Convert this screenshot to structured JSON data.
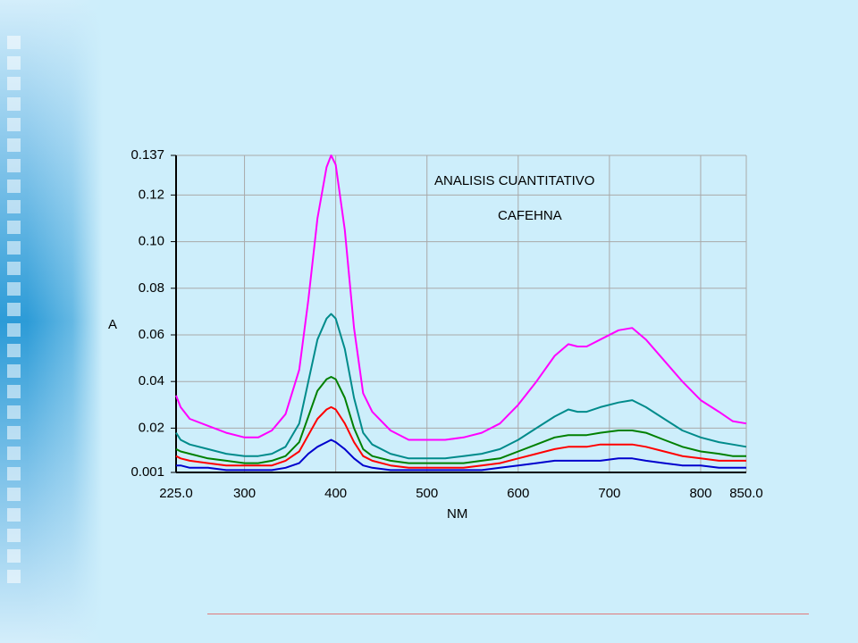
{
  "colors": {
    "background": "#cdeefb",
    "footer_line": "#e07a7a"
  },
  "chart_data": {
    "type": "line",
    "title": "ANALISIS CUANTITATIVO",
    "subtitle": "CAFEHNA",
    "xlabel": "NM",
    "ylabel": "A",
    "xlim": [
      225,
      850
    ],
    "ylim": [
      0.001,
      0.137
    ],
    "x_ticks": [
      {
        "value": 225,
        "label": "225.0"
      },
      {
        "value": 300,
        "label": "300"
      },
      {
        "value": 400,
        "label": "400"
      },
      {
        "value": 500,
        "label": "500"
      },
      {
        "value": 600,
        "label": "600"
      },
      {
        "value": 700,
        "label": "700"
      },
      {
        "value": 800,
        "label": "800"
      },
      {
        "value": 850,
        "label": "850.0"
      }
    ],
    "y_ticks": [
      {
        "value": 0.001,
        "label": "0.001"
      },
      {
        "value": 0.02,
        "label": "0.02"
      },
      {
        "value": 0.04,
        "label": "0.04"
      },
      {
        "value": 0.06,
        "label": "0.06"
      },
      {
        "value": 0.08,
        "label": "0.08"
      },
      {
        "value": 0.1,
        "label": "0.10"
      },
      {
        "value": 0.12,
        "label": "0.12"
      },
      {
        "value": 0.137,
        "label": "0.137"
      }
    ],
    "grid": true,
    "x": [
      225,
      230,
      240,
      260,
      280,
      300,
      315,
      330,
      345,
      360,
      370,
      380,
      390,
      395,
      400,
      410,
      420,
      430,
      440,
      460,
      480,
      500,
      520,
      540,
      560,
      580,
      600,
      620,
      640,
      655,
      665,
      675,
      690,
      710,
      725,
      740,
      760,
      780,
      800,
      820,
      835,
      850
    ],
    "series": [
      {
        "color": "#ff00ff",
        "values": [
          0.034,
          0.029,
          0.024,
          0.021,
          0.018,
          0.016,
          0.016,
          0.019,
          0.026,
          0.045,
          0.075,
          0.11,
          0.132,
          0.137,
          0.133,
          0.105,
          0.063,
          0.035,
          0.027,
          0.019,
          0.015,
          0.015,
          0.015,
          0.016,
          0.018,
          0.022,
          0.03,
          0.04,
          0.051,
          0.056,
          0.055,
          0.055,
          0.058,
          0.062,
          0.063,
          0.058,
          0.049,
          0.04,
          0.032,
          0.027,
          0.023,
          0.022
        ]
      },
      {
        "color": "#008b8b",
        "values": [
          0.018,
          0.015,
          0.013,
          0.011,
          0.009,
          0.008,
          0.008,
          0.009,
          0.012,
          0.022,
          0.04,
          0.058,
          0.067,
          0.069,
          0.067,
          0.054,
          0.033,
          0.018,
          0.013,
          0.009,
          0.007,
          0.007,
          0.007,
          0.008,
          0.009,
          0.011,
          0.015,
          0.02,
          0.025,
          0.028,
          0.027,
          0.027,
          0.029,
          0.031,
          0.032,
          0.029,
          0.024,
          0.019,
          0.016,
          0.014,
          0.013,
          0.012
        ]
      },
      {
        "color": "#008000",
        "values": [
          0.011,
          0.01,
          0.009,
          0.007,
          0.006,
          0.005,
          0.005,
          0.006,
          0.008,
          0.014,
          0.025,
          0.036,
          0.041,
          0.042,
          0.041,
          0.033,
          0.02,
          0.011,
          0.008,
          0.006,
          0.005,
          0.005,
          0.005,
          0.005,
          0.006,
          0.007,
          0.01,
          0.013,
          0.016,
          0.017,
          0.017,
          0.017,
          0.018,
          0.019,
          0.019,
          0.018,
          0.015,
          0.012,
          0.01,
          0.009,
          0.008,
          0.008
        ]
      },
      {
        "color": "#ff0000",
        "values": [
          0.008,
          0.007,
          0.006,
          0.005,
          0.004,
          0.004,
          0.004,
          0.004,
          0.006,
          0.01,
          0.017,
          0.024,
          0.028,
          0.029,
          0.028,
          0.022,
          0.014,
          0.008,
          0.006,
          0.004,
          0.003,
          0.003,
          0.003,
          0.003,
          0.004,
          0.005,
          0.007,
          0.009,
          0.011,
          0.012,
          0.012,
          0.012,
          0.013,
          0.013,
          0.013,
          0.012,
          0.01,
          0.008,
          0.007,
          0.006,
          0.006,
          0.006
        ]
      },
      {
        "color": "#0000cd",
        "values": [
          0.004,
          0.004,
          0.003,
          0.003,
          0.002,
          0.002,
          0.002,
          0.002,
          0.003,
          0.005,
          0.009,
          0.012,
          0.014,
          0.015,
          0.014,
          0.011,
          0.007,
          0.004,
          0.003,
          0.002,
          0.002,
          0.002,
          0.002,
          0.002,
          0.002,
          0.003,
          0.004,
          0.005,
          0.006,
          0.006,
          0.006,
          0.006,
          0.006,
          0.007,
          0.007,
          0.006,
          0.005,
          0.004,
          0.004,
          0.003,
          0.003,
          0.003
        ]
      }
    ]
  }
}
